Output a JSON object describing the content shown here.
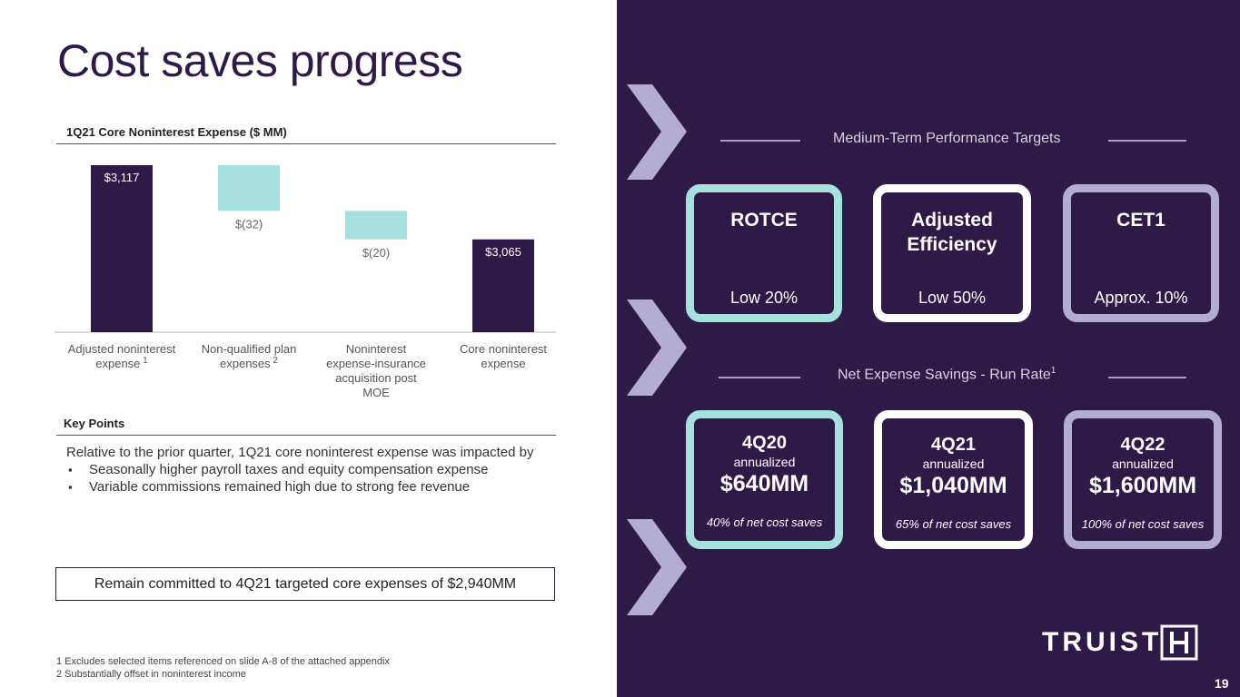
{
  "slide": {
    "title": "Cost saves progress",
    "page_number": "19"
  },
  "colors": {
    "dark_purple": "#2e1a47",
    "teal": "#a8e0e0",
    "lavender": "#b3aed1",
    "white": "#ffffff"
  },
  "chart_data": {
    "type": "bar",
    "title": "1Q21 Core Noninterest Expense ($ MM)",
    "categories": [
      "Adjusted noninterest expense",
      "Non-qualified plan expenses",
      "Noninterest expense-insurance acquisition post MOE",
      "Core noninterest expense"
    ],
    "category_superscripts": [
      "1",
      "2",
      "",
      ""
    ],
    "values": [
      3117,
      -32,
      -20,
      3065
    ],
    "data_labels": [
      "$3,117",
      "$(32)",
      "$(20)",
      "$3,065"
    ],
    "bar_kinds": [
      "total",
      "decrease",
      "decrease",
      "total"
    ]
  },
  "key_points": {
    "heading": "Key Points",
    "intro": "Relative to the prior quarter, 1Q21 core noninterest expense was impacted by",
    "bullets": [
      "Seasonally higher payroll taxes and equity compensation expense",
      "Variable commissions remained high due to strong fee revenue"
    ]
  },
  "commitment": "Remain committed to 4Q21 targeted core expenses of $2,940MM",
  "footnotes": [
    "1  Excludes selected items referenced on slide A-8 of the attached appendix",
    "2  Substantially offset in noninterest income"
  ],
  "targets": {
    "heading": "Medium-Term Performance Targets",
    "cards": [
      {
        "title": "ROTCE",
        "value": "Low 20%",
        "border": "#a8e0e0"
      },
      {
        "title": "Adjusted Efficiency",
        "value": "Low 50%",
        "border": "#ffffff"
      },
      {
        "title": "CET1",
        "value": "Approx. 10%",
        "border": "#b3aed1"
      }
    ]
  },
  "savings": {
    "heading": "Net Expense Savings - Run Rate",
    "heading_sup": "1",
    "cards": [
      {
        "period": "4Q20",
        "sub": "annualized",
        "amount": "$640MM",
        "note": "40% of net cost saves",
        "border": "#a8e0e0"
      },
      {
        "period": "4Q21",
        "sub": "annualized",
        "amount": "$1,040MM",
        "note": "65% of net cost saves",
        "border": "#ffffff"
      },
      {
        "period": "4Q22",
        "sub": "annualized",
        "amount": "$1,600MM",
        "note": "100% of net cost saves",
        "border": "#b3aed1"
      }
    ]
  },
  "logo": {
    "text": "TRUIST"
  }
}
